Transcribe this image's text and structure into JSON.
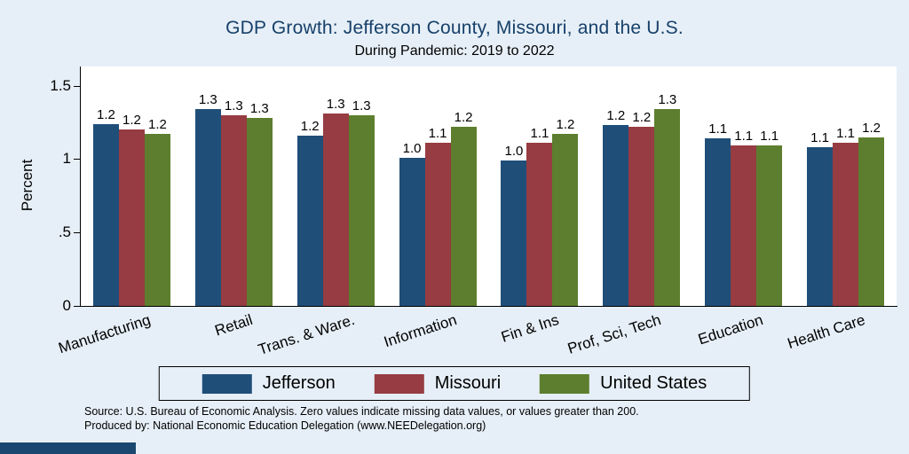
{
  "notes": {
    "line1": "Source: U.S. Bureau of Economic Analysis. Zero values indicate missing data values, or values greater than 200.",
    "line2": "Produced by: National Economic Education Delegation (www.NEEDelegation.org)"
  },
  "colors": {
    "background": "#e6eff7",
    "plot_background": "#ffffff",
    "title_text": "#17406a",
    "axis": "#000000",
    "logo_strip": "#1a476f"
  },
  "chart_data": {
    "type": "bar",
    "title": "GDP Growth: Jefferson County, Missouri, and the U.S.",
    "subtitle": "During Pandemic: 2019 to 2022",
    "ylabel": "Percent",
    "xlabel": "",
    "ylim": [
      0,
      1.63
    ],
    "grid": false,
    "legend_position": "bottom",
    "categories": [
      "Manufacturing",
      "Retail",
      "Trans. & Ware.",
      "Information",
      "Fin & Ins",
      "Prof, Sci, Tech",
      "Education",
      "Health Care"
    ],
    "yticks": [
      {
        "value": 0,
        "label": "0"
      },
      {
        "value": 0.5,
        "label": ".5"
      },
      {
        "value": 1,
        "label": "1"
      },
      {
        "value": 1.5,
        "label": "1.5"
      }
    ],
    "series": [
      {
        "name": "Jefferson",
        "color": "#1f4e79",
        "values": [
          1.24,
          1.34,
          1.16,
          1.01,
          0.99,
          1.23,
          1.14,
          1.08
        ],
        "value_labels": [
          "1.2",
          "1.3",
          "1.2",
          "1.0",
          "1.0",
          "1.2",
          "1.1",
          "1.1"
        ]
      },
      {
        "name": "Missouri",
        "color": "#963c42",
        "values": [
          1.2,
          1.3,
          1.31,
          1.11,
          1.11,
          1.22,
          1.09,
          1.11
        ],
        "value_labels": [
          "1.2",
          "1.3",
          "1.3",
          "1.1",
          "1.1",
          "1.2",
          "1.1",
          "1.1"
        ]
      },
      {
        "name": "United States",
        "color": "#5d7e2e",
        "values": [
          1.17,
          1.28,
          1.3,
          1.22,
          1.17,
          1.34,
          1.09,
          1.15
        ],
        "value_labels": [
          "1.2",
          "1.3",
          "1.3",
          "1.2",
          "1.2",
          "1.3",
          "1.1",
          "1.2"
        ]
      }
    ]
  }
}
